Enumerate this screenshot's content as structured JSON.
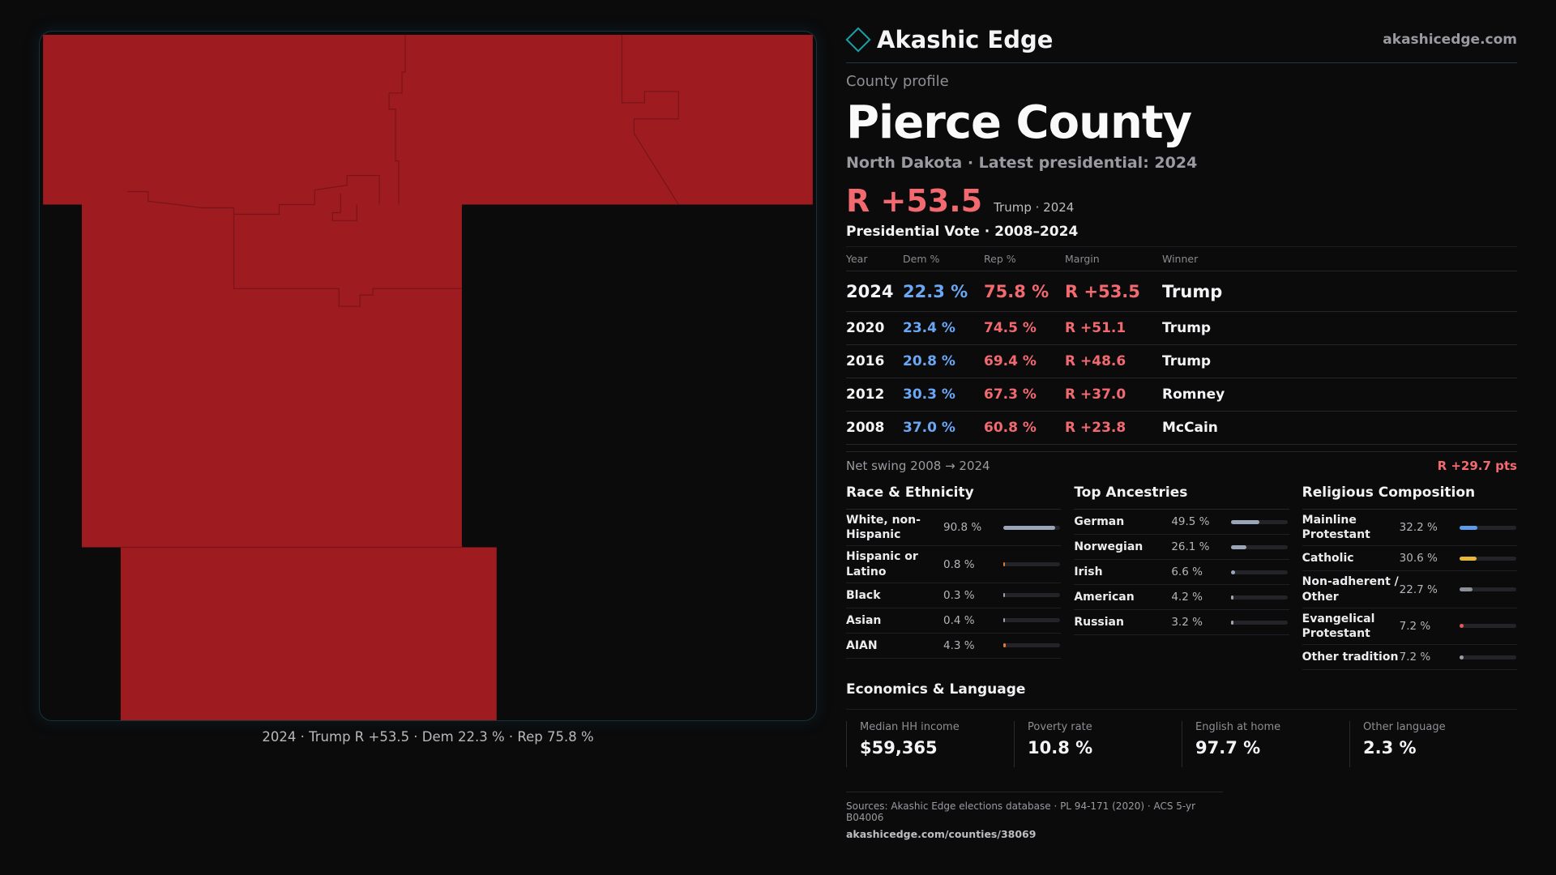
{
  "map": {
    "caption": "2024 · Trump R +53.5 · Dem 22.3 % · Rep 75.8 %",
    "fill_color": "#9e1b1f"
  },
  "header": {
    "brand": "Akashic Edge",
    "url": "akashicedge.com",
    "kicker": "County profile",
    "county": "Pierce County",
    "subtitle": "North Dakota · Latest presidential: 2024",
    "margin": "R +53.5",
    "margin_note": "Trump · 2024"
  },
  "votes": {
    "title": "Presidential Vote · 2008–2024",
    "columns": [
      "Year",
      "Dem %",
      "Rep %",
      "Margin",
      "Winner"
    ],
    "rows": [
      {
        "year": "2024",
        "dem": "22.3 %",
        "rep": "75.8 %",
        "margin": "R +53.5",
        "winner": "Trump"
      },
      {
        "year": "2020",
        "dem": "23.4 %",
        "rep": "74.5 %",
        "margin": "R +51.1",
        "winner": "Trump"
      },
      {
        "year": "2016",
        "dem": "20.8 %",
        "rep": "69.4 %",
        "margin": "R +48.6",
        "winner": "Trump"
      },
      {
        "year": "2012",
        "dem": "30.3 %",
        "rep": "67.3 %",
        "margin": "R +37.0",
        "winner": "Romney"
      },
      {
        "year": "2008",
        "dem": "37.0 %",
        "rep": "60.8 %",
        "margin": "R +23.8",
        "winner": "McCain"
      }
    ],
    "swing_label": "Net swing 2008 → 2024",
    "swing_value": "R +29.7 pts"
  },
  "race": {
    "title": "Race & Ethnicity",
    "items": [
      {
        "label": "White, non-Hispanic",
        "value": "90.8 %",
        "pct": 90.8,
        "color": "#9aa6b8"
      },
      {
        "label": "Hispanic or Latino",
        "value": "0.8 %",
        "pct": 0.8,
        "color": "#e07b3a"
      },
      {
        "label": "Black",
        "value": "0.3 %",
        "pct": 0.3,
        "color": "#9aa6b8"
      },
      {
        "label": "Asian",
        "value": "0.4 %",
        "pct": 0.4,
        "color": "#9aa6b8"
      },
      {
        "label": "AIAN",
        "value": "4.3 %",
        "pct": 4.3,
        "color": "#e07b3a"
      }
    ]
  },
  "ancestry": {
    "title": "Top Ancestries",
    "items": [
      {
        "label": "German",
        "value": "49.5 %",
        "pct": 49.5,
        "color": "#9aa6b8"
      },
      {
        "label": "Norwegian",
        "value": "26.1 %",
        "pct": 26.1,
        "color": "#9aa6b8"
      },
      {
        "label": "Irish",
        "value": "6.6 %",
        "pct": 6.6,
        "color": "#9aa6b8"
      },
      {
        "label": "American",
        "value": "4.2 %",
        "pct": 4.2,
        "color": "#9aa6b8"
      },
      {
        "label": "Russian",
        "value": "3.2 %",
        "pct": 3.2,
        "color": "#9aa6b8"
      }
    ]
  },
  "religion": {
    "title": "Religious Composition",
    "items": [
      {
        "label": "Mainline Protestant",
        "value": "32.2 %",
        "pct": 32.2,
        "color": "#5b9bea"
      },
      {
        "label": "Catholic",
        "value": "30.6 %",
        "pct": 30.6,
        "color": "#e8b63a"
      },
      {
        "label": "Non-adherent / Other",
        "value": "22.7 %",
        "pct": 22.7,
        "color": "#8a8f98"
      },
      {
        "label": "Evangelical Protestant",
        "value": "7.2 %",
        "pct": 7.2,
        "color": "#e05a5a"
      },
      {
        "label": "Other tradition",
        "value": "7.2 %",
        "pct": 7.2,
        "color": "#9aa0a8"
      }
    ]
  },
  "economics": {
    "title": "Economics & Language",
    "cells": [
      {
        "label": "Median HH income",
        "value": "$59,365"
      },
      {
        "label": "Poverty rate",
        "value": "10.8 %"
      },
      {
        "label": "English at home",
        "value": "97.7 %"
      },
      {
        "label": "Other language",
        "value": "2.3 %"
      }
    ]
  },
  "sources": {
    "text": "Sources: Akashic Edge elections database · PL 94-171 (2020) · ACS 5-yr B04006",
    "url": "akashicedge.com/counties/38069"
  }
}
